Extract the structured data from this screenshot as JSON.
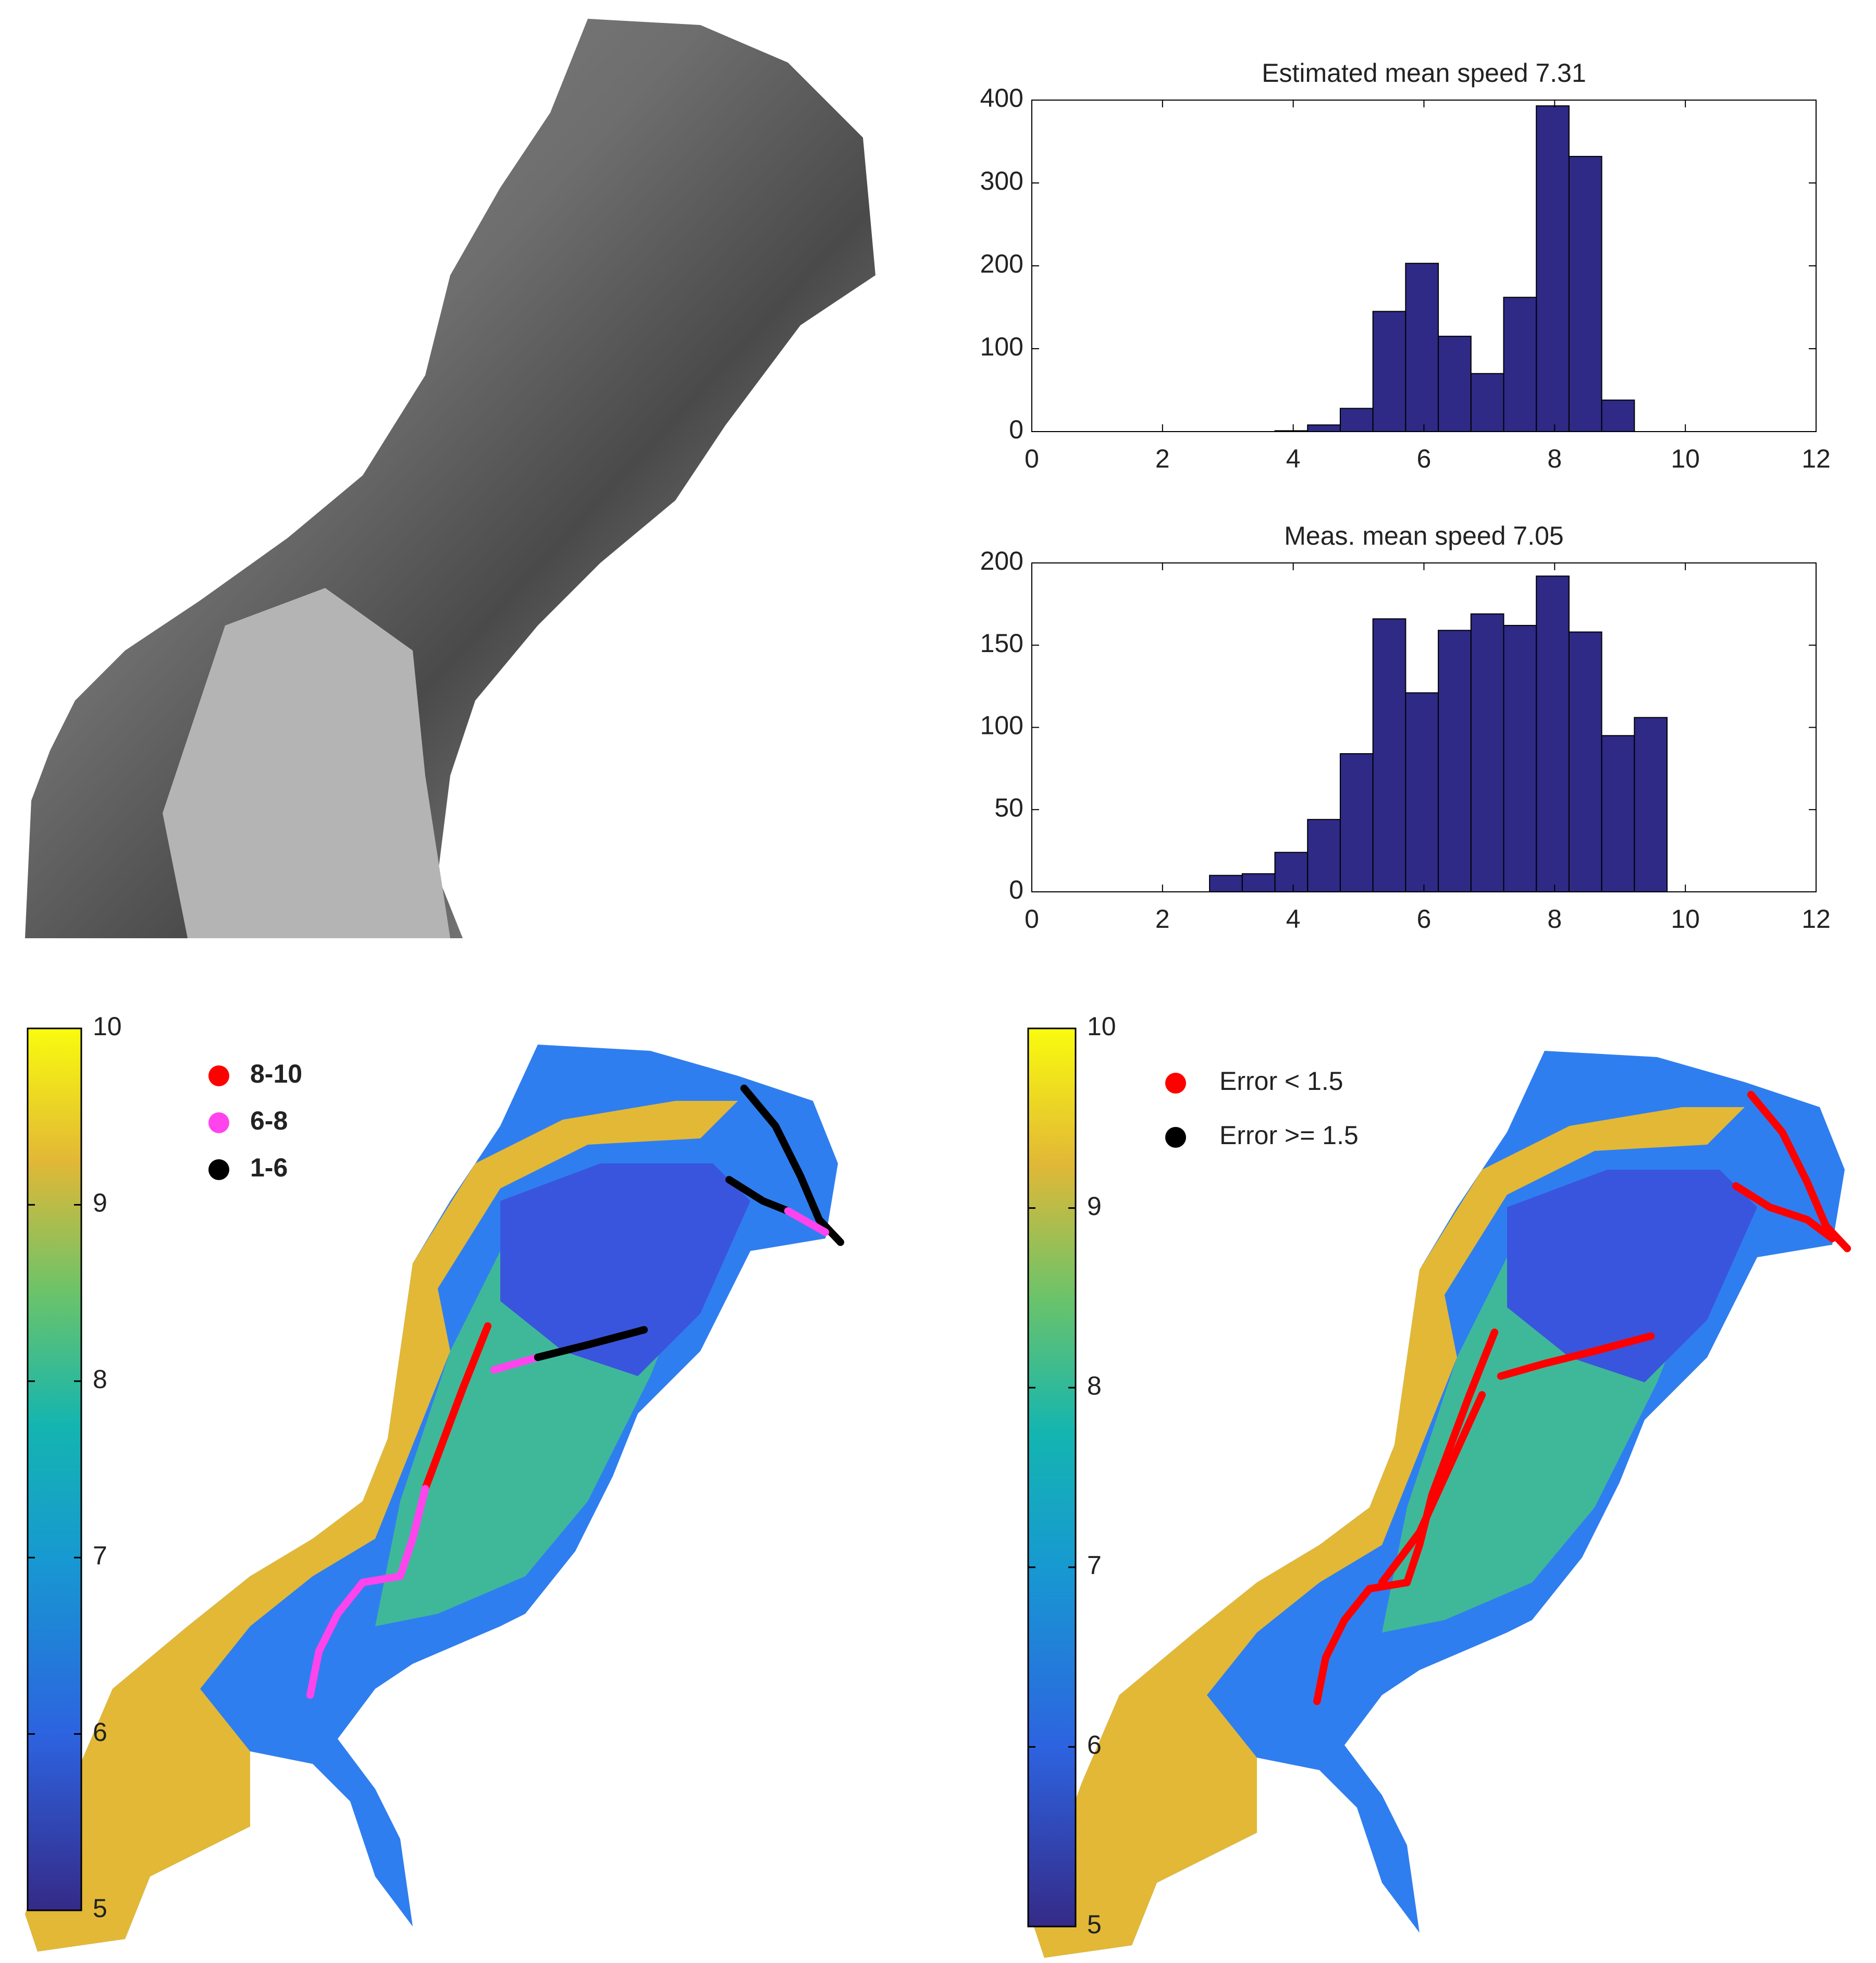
{
  "chart_data": [
    {
      "type": "histogram",
      "title": "Estimated mean speed  7.31",
      "bins": [
        1.72,
        2.22,
        2.72,
        3.22,
        3.72,
        4.22,
        4.72,
        5.22,
        5.72,
        6.22,
        6.72,
        7.22,
        7.72,
        8.22,
        8.72,
        9.22,
        9.72,
        10.22
      ],
      "values": [
        0,
        0,
        0,
        0,
        1,
        8,
        28,
        145,
        203,
        115,
        70,
        162,
        393,
        332,
        38,
        0,
        0
      ],
      "color": "#2e2a86",
      "xlim": [
        0,
        12
      ],
      "xticks": [
        0,
        2,
        4,
        6,
        8,
        10,
        12
      ],
      "ylim": [
        0,
        400
      ],
      "yticks": [
        0,
        100,
        200,
        300,
        400
      ]
    },
    {
      "type": "histogram",
      "title": "Meas. mean speed  7.05",
      "bins": [
        1.72,
        2.22,
        2.72,
        3.22,
        3.72,
        4.22,
        4.72,
        5.22,
        5.72,
        6.22,
        6.72,
        7.22,
        7.72,
        8.22,
        8.72,
        9.22,
        9.72,
        10.22
      ],
      "values": [
        0,
        0,
        10,
        11,
        24,
        44,
        84,
        166,
        121,
        159,
        169,
        162,
        192,
        158,
        95,
        106,
        0
      ],
      "color": "#2e2a86",
      "xlim": [
        0,
        12
      ],
      "xticks": [
        0,
        2,
        4,
        6,
        8,
        10,
        12
      ],
      "ylim": [
        0,
        200
      ],
      "yticks": [
        0,
        50,
        100,
        150,
        200
      ]
    },
    {
      "type": "map",
      "ylim": [
        5,
        10
      ],
      "yticks": [
        5,
        6,
        7,
        8,
        9,
        10
      ],
      "legend_bold": true,
      "series": [
        {
          "name": "8-10",
          "color": "#ff0000"
        },
        {
          "name": "6-8",
          "color": "#ff44ee"
        },
        {
          "name": "1-6",
          "color": "#000000"
        }
      ]
    },
    {
      "type": "map",
      "ylim": [
        5,
        10
      ],
      "yticks": [
        5,
        6,
        7,
        8,
        9,
        10
      ],
      "legend_bold": false,
      "series": [
        {
          "name": "Error < 1.5",
          "color": "#ff0000"
        },
        {
          "name": "Error >= 1.5",
          "color": "#000000"
        }
      ]
    }
  ]
}
